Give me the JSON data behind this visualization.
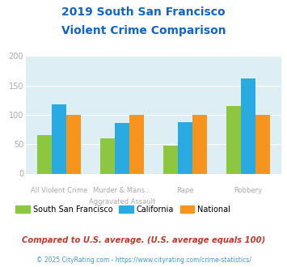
{
  "title_line1": "2019 South San Francisco",
  "title_line2": "Violent Crime Comparison",
  "category_labels_top": [
    "",
    "Murder & Mans...",
    "",
    ""
  ],
  "category_labels_bottom": [
    "All Violent Crime",
    "Aggravated Assault",
    "Rape",
    "Robbery"
  ],
  "ssf_values": [
    65,
    60,
    48,
    115
  ],
  "ca_values": [
    118,
    86,
    87,
    162
  ],
  "nat_values": [
    100,
    100,
    100,
    100
  ],
  "ssf_color": "#8dc63f",
  "ca_color": "#29abe2",
  "nat_color": "#f7941d",
  "ylim": [
    0,
    200
  ],
  "yticks": [
    0,
    50,
    100,
    150,
    200
  ],
  "background_color": "#ffffff",
  "plot_bg_color": "#ddeef4",
  "title_color": "#1565c0",
  "axis_label_color": "#aaaaaa",
  "legend_labels": [
    "South San Francisco",
    "California",
    "National"
  ],
  "footnote1": "Compared to U.S. average. (U.S. average equals 100)",
  "footnote2": "© 2025 CityRating.com - https://www.cityrating.com/crime-statistics/",
  "footnote1_color": "#c0392b",
  "footnote2_color": "#4499cc"
}
